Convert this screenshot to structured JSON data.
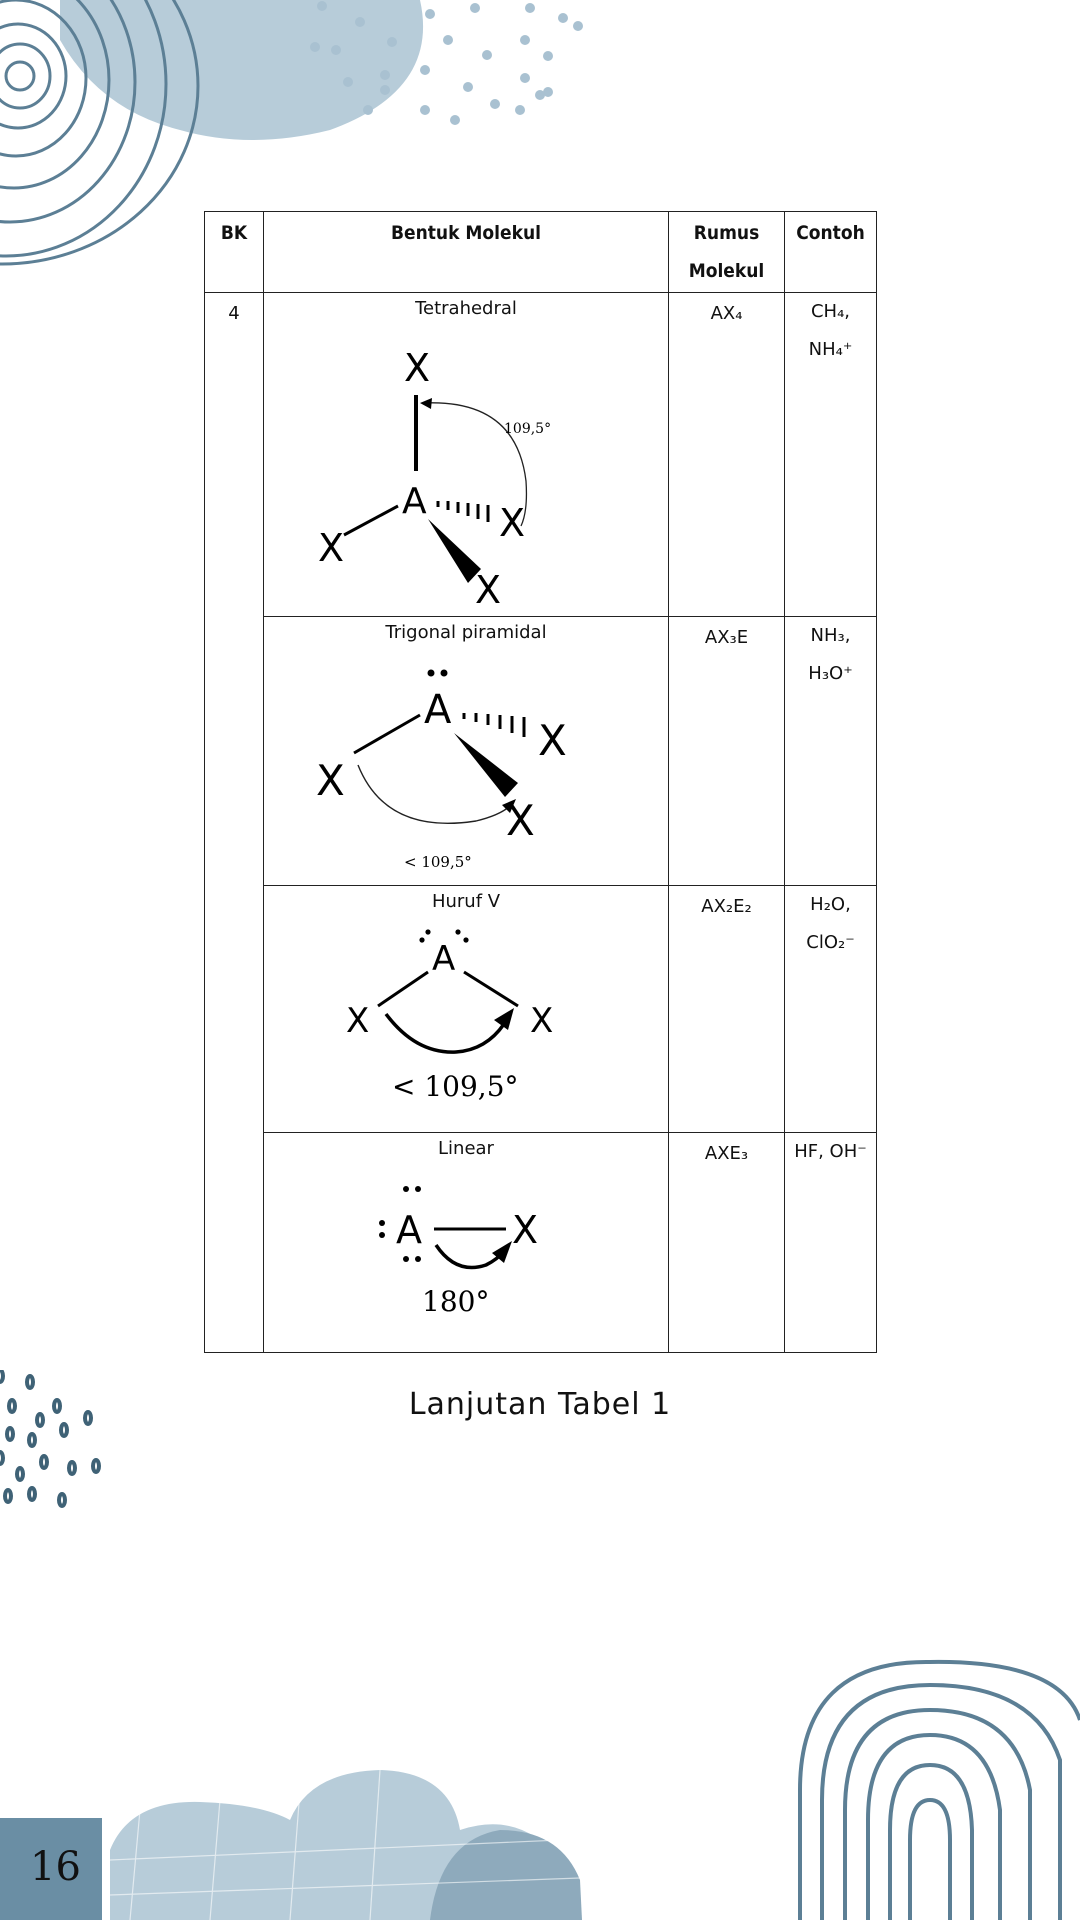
{
  "table": {
    "headers": {
      "bk": "BK",
      "shape": "Bentuk Molekul",
      "formula_line1": "Rumus",
      "formula_line2": "Molekul",
      "example": "Contoh"
    },
    "bk_value": "4",
    "rows": [
      {
        "shape_name": "Tetrahedral",
        "formula": "AX₄",
        "examples": [
          "CH₄,",
          "NH₄⁺"
        ],
        "diagram": {
          "labels": {
            "top": "X",
            "center": "A",
            "left": "X",
            "right": "X",
            "bottom": "X"
          },
          "angle": "109,5°"
        }
      },
      {
        "shape_name": "Trigonal piramidal",
        "formula": "AX₃E",
        "examples": [
          "NH₃,",
          "H₃O⁺"
        ],
        "diagram": {
          "labels": {
            "center": "A",
            "left": "X",
            "right": "X",
            "bottom": "X"
          },
          "angle": "< 109,5°"
        }
      },
      {
        "shape_name": "Huruf V",
        "formula": "AX₂E₂",
        "examples": [
          "H₂O,",
          "ClO₂⁻"
        ],
        "diagram": {
          "labels": {
            "center": "A",
            "left": "X",
            "right": "X"
          },
          "angle": "< 109,5°"
        }
      },
      {
        "shape_name": "Linear",
        "formula": "AXE₃",
        "examples": [
          "HF, OH⁻"
        ],
        "diagram": {
          "labels": {
            "center": "A",
            "right": "X"
          },
          "angle": "180°"
        }
      }
    ]
  },
  "caption": "Lanjutan Tabel 1",
  "page_number": "16",
  "colors": {
    "deco_blue": "#a9c1d1",
    "deco_dark": "#5c7f95",
    "page_box": "#6a8ea4"
  }
}
